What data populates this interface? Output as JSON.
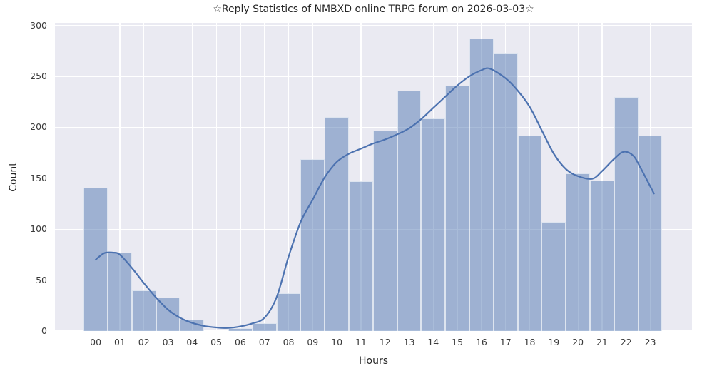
{
  "chart_data": {
    "type": "bar",
    "subtype": "histogram-with-kde",
    "title": "☆Reply Statistics of NMBXD online TRPG forum on 2026-03-03☆",
    "xlabel": "Hours",
    "ylabel": "Count",
    "categories": [
      "00",
      "01",
      "02",
      "03",
      "04",
      "05",
      "06",
      "07",
      "08",
      "09",
      "10",
      "11",
      "12",
      "13",
      "14",
      "15",
      "16",
      "17",
      "18",
      "19",
      "20",
      "21",
      "22",
      "23"
    ],
    "values": [
      141,
      77,
      40,
      33,
      11,
      0,
      3,
      8,
      37,
      169,
      210,
      147,
      197,
      236,
      209,
      241,
      287,
      273,
      192,
      107,
      155,
      148,
      230,
      192
    ],
    "yticks": [
      0,
      50,
      100,
      150,
      200,
      250,
      300
    ],
    "ylim": [
      0,
      302.5
    ],
    "xlim": [
      -1.69,
      24.73
    ],
    "grid": "on",
    "legend": "none",
    "kde_series": {
      "name": "kde-density-curve",
      "points": [
        [
          0,
          70
        ],
        [
          0.35,
          76.5
        ],
        [
          0.7,
          77
        ],
        [
          1,
          75
        ],
        [
          1.5,
          62
        ],
        [
          2,
          47
        ],
        [
          2.5,
          33
        ],
        [
          3,
          21
        ],
        [
          3.5,
          13
        ],
        [
          4,
          8
        ],
        [
          4.5,
          5
        ],
        [
          5,
          3.5
        ],
        [
          5.5,
          3
        ],
        [
          6,
          4.5
        ],
        [
          6.5,
          7.5
        ],
        [
          7,
          13
        ],
        [
          7.5,
          33
        ],
        [
          8,
          73
        ],
        [
          8.5,
          107
        ],
        [
          9,
          129
        ],
        [
          9.5,
          151
        ],
        [
          10,
          166
        ],
        [
          10.5,
          174
        ],
        [
          11,
          179
        ],
        [
          11.5,
          184
        ],
        [
          12,
          188
        ],
        [
          12.5,
          193
        ],
        [
          13,
          199
        ],
        [
          13.5,
          208
        ],
        [
          14,
          219
        ],
        [
          14.5,
          230
        ],
        [
          15,
          241
        ],
        [
          15.5,
          250
        ],
        [
          16,
          256
        ],
        [
          16.35,
          257.5
        ],
        [
          17,
          248
        ],
        [
          17.5,
          236
        ],
        [
          18,
          220
        ],
        [
          18.5,
          197
        ],
        [
          19,
          174
        ],
        [
          19.5,
          159
        ],
        [
          20,
          152
        ],
        [
          20.6,
          149.5
        ],
        [
          21,
          157
        ],
        [
          21.5,
          169
        ],
        [
          21.9,
          176
        ],
        [
          22.3,
          172
        ],
        [
          22.6,
          160
        ],
        [
          23,
          142
        ],
        [
          23.15,
          135
        ]
      ]
    },
    "colors": {
      "bar_fill": "#4c72b0",
      "bar_alpha": 0.48,
      "kde_line": "#4c72b0",
      "plot_background": "#eaeaf2",
      "figure_background": "#ffffff",
      "grid_color": "#ffffff",
      "text_color": "#262626",
      "tick_color": "#3b3b3b"
    }
  }
}
